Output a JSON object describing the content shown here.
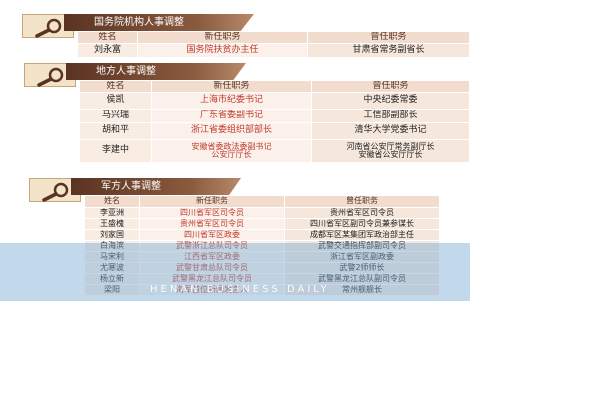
{
  "sections": [
    {
      "title": "国务院机构人事调整",
      "columns": [
        "姓名",
        "新任职务",
        "曾任职务"
      ],
      "rows": [
        [
          "刘永富",
          "国务院扶贫办主任",
          "甘肃省常务副省长"
        ]
      ]
    },
    {
      "title": "地方人事调整",
      "columns": [
        "姓名",
        "新任职务",
        "曾任职务"
      ],
      "rows": [
        [
          "侯凯",
          "上海市纪委书记",
          "中央纪委常委"
        ],
        [
          "马兴瑞",
          "广东省委副书记",
          "工信部副部长"
        ],
        [
          "胡和平",
          "浙江省委组织部部长",
          "清华大学党委书记"
        ],
        [
          "李建中",
          [
            "安徽省委政法委副书记",
            "公安厅厅长"
          ],
          [
            "河南省公安厅常务副厅长",
            "安徽省公安厅厅长"
          ]
        ]
      ]
    },
    {
      "title": "军方人事调整",
      "columns": [
        "姓名",
        "新任职务",
        "曾任职务"
      ],
      "rows": [
        [
          "李亚洲",
          "四川省军区司令员",
          "贵州省军区司令员"
        ],
        [
          "王盛槐",
          "贵州省军区司令员",
          "四川省军区副司令员兼参谋长"
        ],
        [
          "刘家国",
          "四川省军区政委",
          "成都军区某集团军政治部主任"
        ],
        [
          "白海滨",
          "武警浙江总队司令员",
          "武警交通指挥部副司令员"
        ],
        [
          "马宋利",
          "江西省军区政委",
          "浙江省军区副政委"
        ],
        [
          "尤寒波",
          "武警甘肃总队司令员",
          "武警2师师长"
        ],
        [
          "杨立新",
          "武警黑龙江总队司令员",
          "武警黑龙江总队副司令员"
        ],
        [
          "梁阳",
          "海军首位新闻发言人",
          "常州舰舰长"
        ]
      ]
    }
  ],
  "watermark": "HENAN BUSINESS DAILY"
}
